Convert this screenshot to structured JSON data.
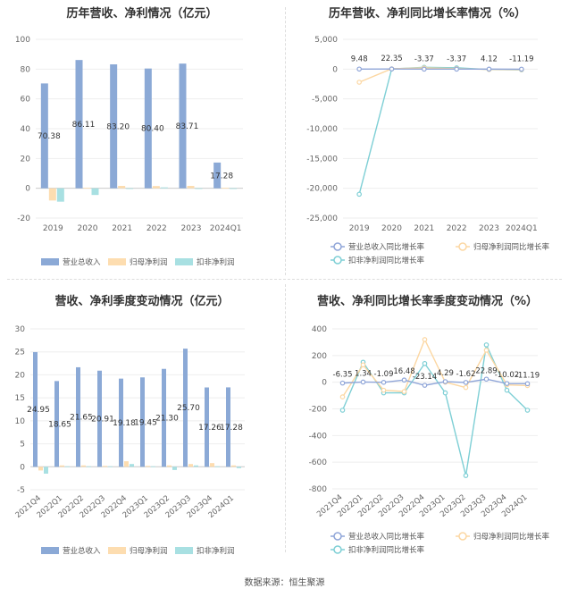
{
  "source": "数据来源：恒生聚源",
  "colors": {
    "revenue": "#8BA9D6",
    "net": "#FDDDB0",
    "deducted": "#A8E0E2",
    "revenue_line": "#8FA5D8",
    "net_line": "#FCD7A2",
    "deducted_line": "#7ECFD5"
  },
  "chart_data": [
    {
      "type": "bar",
      "title": "历年营收、净利情况（亿元）",
      "categories": [
        "2019",
        "2020",
        "2021",
        "2022",
        "2023",
        "2024Q1"
      ],
      "ylim": [
        -20,
        100
      ],
      "yticks": [
        -20,
        0,
        20,
        40,
        60,
        80,
        100
      ],
      "series": [
        {
          "name": "营业总收入",
          "values": [
            70.38,
            86.11,
            83.2,
            80.4,
            83.71,
            17.28
          ],
          "labels": [
            "70.38",
            "86.11",
            "83.20",
            "80.40",
            "83.71",
            "17.28"
          ]
        },
        {
          "name": "归母净利润",
          "values": [
            -8.2,
            0.3,
            1.6,
            1.5,
            1.6,
            0.3
          ]
        },
        {
          "name": "扣非净利润",
          "values": [
            -9.0,
            -4.5,
            -0.3,
            0.6,
            -0.4,
            -0.3
          ]
        }
      ],
      "legend": "bottom"
    },
    {
      "type": "line",
      "title": "历年营收、净利同比增长率情况（%）",
      "categories": [
        "2019",
        "2020",
        "2021",
        "2022",
        "2023",
        "2024Q1"
      ],
      "ylim": [
        -25000,
        5000
      ],
      "yticks": [
        -25000,
        -20000,
        -15000,
        -10000,
        -5000,
        0,
        5000
      ],
      "ytick_labels": [
        "-25,000",
        "-20,000",
        "-15,000",
        "-10,000",
        "-5,000",
        "0",
        "5,000"
      ],
      "series": [
        {
          "name": "营业总收入同比增长率",
          "values": [
            9.48,
            22.35,
            -3.37,
            -3.37,
            4.12,
            -11.19
          ],
          "labels": [
            "9.48",
            "22.35",
            "-3.37",
            "-3.37",
            "4.12",
            "-11.19"
          ]
        },
        {
          "name": "归母净利润同比增长率",
          "values": [
            -2200,
            50,
            200,
            80,
            -60,
            -80
          ]
        },
        {
          "name": "扣非净利润同比增长率",
          "values": [
            -21000,
            20,
            300,
            220,
            -70,
            -120
          ]
        }
      ],
      "legend": "bottom"
    },
    {
      "type": "bar",
      "title": "营收、净利季度变动情况（亿元）",
      "categories": [
        "2021Q4",
        "2022Q1",
        "2022Q2",
        "2022Q3",
        "2022Q4",
        "2023Q1",
        "2023Q2",
        "2023Q3",
        "2023Q4",
        "2024Q1"
      ],
      "ylim": [
        -5,
        30
      ],
      "yticks": [
        -5,
        0,
        5,
        10,
        15,
        20,
        25,
        30
      ],
      "series": [
        {
          "name": "营业总收入",
          "values": [
            24.95,
            18.65,
            21.65,
            20.91,
            19.18,
            19.45,
            21.3,
            25.7,
            17.26,
            17.28
          ],
          "labels": [
            "24.95",
            "18.65",
            "21.65",
            "20.91",
            "19.18",
            "19.45",
            "21.30",
            "25.70",
            "17.26",
            "17.28"
          ]
        },
        {
          "name": "归母净利润",
          "values": [
            -0.8,
            0.3,
            0.3,
            0.2,
            1.2,
            0.2,
            0.3,
            0.6,
            0.8,
            0.3
          ]
        },
        {
          "name": "扣非净利润",
          "values": [
            -1.5,
            0.1,
            0.1,
            0.1,
            0.6,
            0.1,
            -0.7,
            0.3,
            0.1,
            -0.3
          ]
        }
      ],
      "legend": "bottom"
    },
    {
      "type": "line",
      "title": "营收、净利同比增长率季度变动情况（%）",
      "categories": [
        "2021Q4",
        "2022Q1",
        "2022Q2",
        "2022Q3",
        "2022Q4",
        "2023Q1",
        "2023Q2",
        "2023Q3",
        "2023Q4",
        "2024Q1"
      ],
      "ylim": [
        -800,
        400
      ],
      "yticks": [
        -800,
        -600,
        -400,
        -200,
        0,
        200,
        400
      ],
      "series": [
        {
          "name": "营业总收入同比增长率",
          "values": [
            -6.35,
            1.34,
            -1.09,
            16.48,
            -23.14,
            4.29,
            -1.62,
            22.89,
            -10.02,
            -11.19
          ],
          "labels": [
            "-6.35",
            "1.34",
            "-1.09",
            "16.48",
            "-23.14",
            "4.29",
            "-1.62",
            "22.89",
            "-10.02",
            "-11.19"
          ]
        },
        {
          "name": "归母净利润同比增长率",
          "values": [
            -110,
            130,
            -60,
            -70,
            320,
            0,
            -40,
            240,
            -20,
            -25
          ]
        },
        {
          "name": "扣非净利润同比增长率",
          "values": [
            -210,
            150,
            -80,
            -80,
            140,
            -80,
            -700,
            280,
            -60,
            -210
          ]
        }
      ],
      "legend": "bottom"
    }
  ]
}
